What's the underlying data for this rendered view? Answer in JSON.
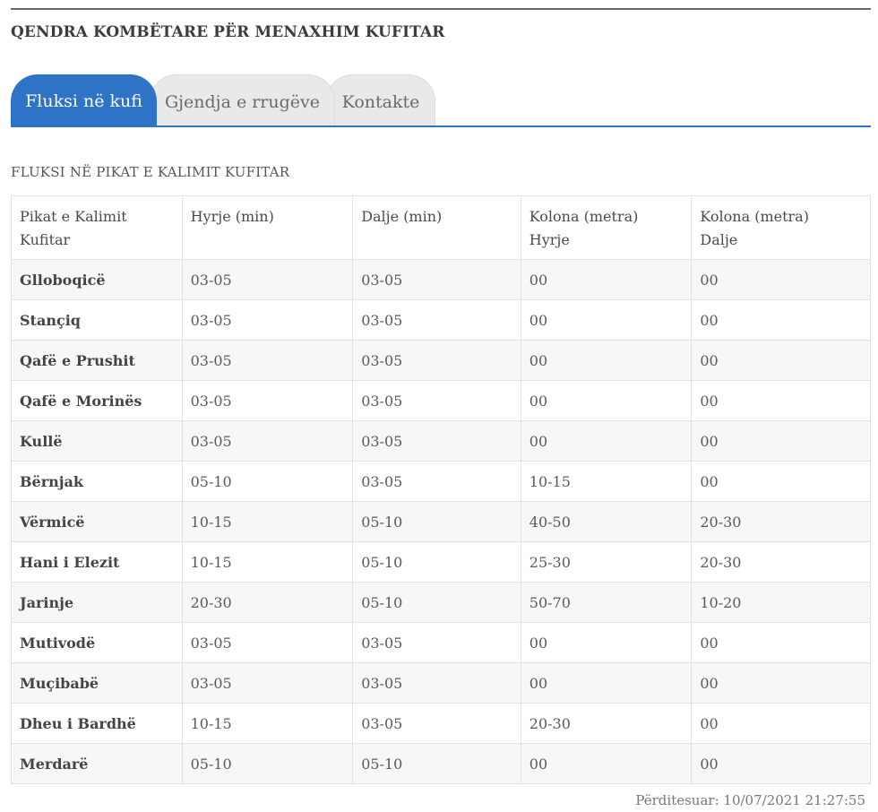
{
  "header": {
    "title": "QENDRA KOMBËTARE PËR MENAXHIM KUFITAR"
  },
  "tabs": [
    {
      "label": "Fluksi në kufi",
      "active": true
    },
    {
      "label": "Gjendja e rrugëve",
      "active": false
    },
    {
      "label": "Kontakte",
      "active": false
    }
  ],
  "section": {
    "title": "FLUKSI NË PIKAT E KALIMIT KUFITAR"
  },
  "table": {
    "headers": [
      [
        "Pikat e Kalimit",
        "Kufitar"
      ],
      [
        "Hyrje (min)"
      ],
      [
        "Dalje (min)"
      ],
      [
        "Kolona (metra)",
        "Hyrje"
      ],
      [
        "Kolona (metra)",
        "Dalje"
      ]
    ],
    "rows": [
      [
        "Glloboqicë",
        "03-05",
        "03-05",
        "00",
        "00"
      ],
      [
        "Stançiq",
        "03-05",
        "03-05",
        "00",
        "00"
      ],
      [
        "Qafë e Prushit",
        "03-05",
        "03-05",
        "00",
        "00"
      ],
      [
        "Qafë e Morinës",
        "03-05",
        "03-05",
        "00",
        "00"
      ],
      [
        "Kullë",
        "03-05",
        "03-05",
        "00",
        "00"
      ],
      [
        "Bërnjak",
        "05-10",
        "03-05",
        "10-15",
        "00"
      ],
      [
        "Vërmicë",
        "10-15",
        "05-10",
        "40-50",
        "20-30"
      ],
      [
        "Hani i Elezit",
        "10-15",
        "05-10",
        "25-30",
        "20-30"
      ],
      [
        "Jarinje",
        "20-30",
        "05-10",
        "50-70",
        "10-20"
      ],
      [
        "Mutivodë",
        "03-05",
        "03-05",
        "00",
        "00"
      ],
      [
        "Muçibabë",
        "03-05",
        "03-05",
        "00",
        "00"
      ],
      [
        "Dheu i Bardhë",
        "10-15",
        "03-05",
        "20-30",
        "00"
      ],
      [
        "Merdarë",
        "05-10",
        "05-10",
        "00",
        "00"
      ]
    ]
  },
  "footer": {
    "updated": "Përditesuar: 10/07/2021 21:27:55"
  },
  "colors": {
    "accent": "#2f73c6",
    "tab_inactive": "#e9e9e9",
    "row_stripe": "#f7f7f7"
  }
}
